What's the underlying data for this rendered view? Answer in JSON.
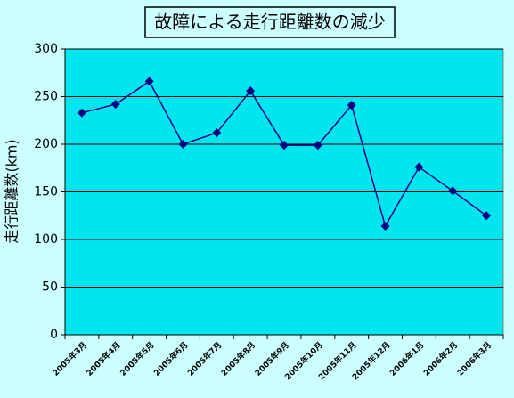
{
  "chart_data": {
    "type": "line",
    "title": "故障による走行距離数の減少",
    "y_label": "走行距離数(km)",
    "categories": [
      "2005年3月",
      "2005年4月",
      "2005年5月",
      "2005年6月",
      "2005年7月",
      "2005年8月",
      "2005年9月",
      "2005年10月",
      "2005年11月",
      "2005年12月",
      "2006年1月",
      "2006年2月",
      "2006年3月"
    ],
    "values": [
      233,
      242,
      266,
      200,
      212,
      256,
      199,
      199,
      241,
      114,
      176,
      151,
      125
    ],
    "color": "#000080",
    "ylim": [
      0,
      300
    ],
    "yticks": [
      0,
      50,
      100,
      150,
      200,
      250,
      300
    ],
    "grid": true
  }
}
